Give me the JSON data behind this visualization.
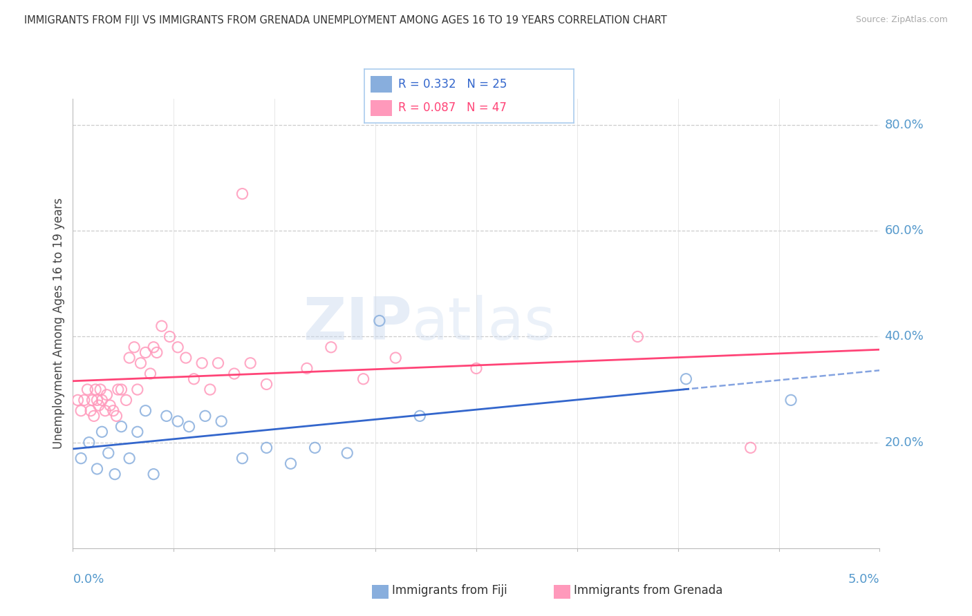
{
  "title": "IMMIGRANTS FROM FIJI VS IMMIGRANTS FROM GRENADA UNEMPLOYMENT AMONG AGES 16 TO 19 YEARS CORRELATION CHART",
  "source": "Source: ZipAtlas.com",
  "ylabel": "Unemployment Among Ages 16 to 19 years",
  "xlim": [
    0.0,
    5.0
  ],
  "ylim": [
    0.0,
    85.0
  ],
  "ytick_vals": [
    20,
    40,
    60,
    80
  ],
  "ytick_labels": [
    "20.0%",
    "40.0%",
    "60.0%",
    "80.0%"
  ],
  "color_fiji": "#88AEDD",
  "color_grenada": "#FF99BB",
  "color_fiji_line": "#3366CC",
  "color_grenada_line": "#FF4477",
  "color_axis_text": "#5599CC",
  "watermark_zip": "ZIP",
  "watermark_atlas": "atlas",
  "fiji_R": "0.332",
  "fiji_N": "25",
  "grenada_R": "0.087",
  "grenada_N": "47",
  "fiji_x": [
    0.05,
    0.1,
    0.15,
    0.18,
    0.22,
    0.26,
    0.3,
    0.35,
    0.4,
    0.45,
    0.5,
    0.58,
    0.65,
    0.72,
    0.82,
    0.92,
    1.05,
    1.2,
    1.35,
    1.5,
    1.7,
    1.9,
    2.15,
    3.8,
    4.45
  ],
  "fiji_y": [
    17,
    20,
    15,
    22,
    18,
    14,
    23,
    17,
    22,
    26,
    14,
    25,
    24,
    23,
    25,
    24,
    17,
    19,
    16,
    19,
    18,
    43,
    25,
    32,
    28
  ],
  "grenada_x": [
    0.03,
    0.05,
    0.07,
    0.09,
    0.11,
    0.12,
    0.13,
    0.14,
    0.15,
    0.16,
    0.17,
    0.18,
    0.2,
    0.21,
    0.23,
    0.25,
    0.27,
    0.3,
    0.33,
    0.35,
    0.38,
    0.4,
    0.42,
    0.45,
    0.48,
    0.5,
    0.55,
    0.6,
    0.65,
    0.7,
    0.75,
    0.8,
    0.85,
    0.9,
    1.0,
    1.05,
    1.1,
    1.2,
    1.45,
    1.6,
    1.8,
    2.0,
    2.5,
    3.5,
    4.2,
    0.28,
    0.52
  ],
  "grenada_y": [
    28,
    26,
    28,
    30,
    26,
    28,
    25,
    30,
    28,
    27,
    30,
    28,
    26,
    29,
    27,
    26,
    25,
    30,
    28,
    36,
    38,
    30,
    35,
    37,
    33,
    38,
    42,
    40,
    38,
    36,
    32,
    35,
    30,
    35,
    33,
    67,
    35,
    31,
    34,
    38,
    32,
    36,
    34,
    40,
    19,
    30,
    37
  ],
  "background_color": "#FFFFFF",
  "grid_color": "#DDDDDD",
  "grid_dash_color": "#CCCCCC"
}
